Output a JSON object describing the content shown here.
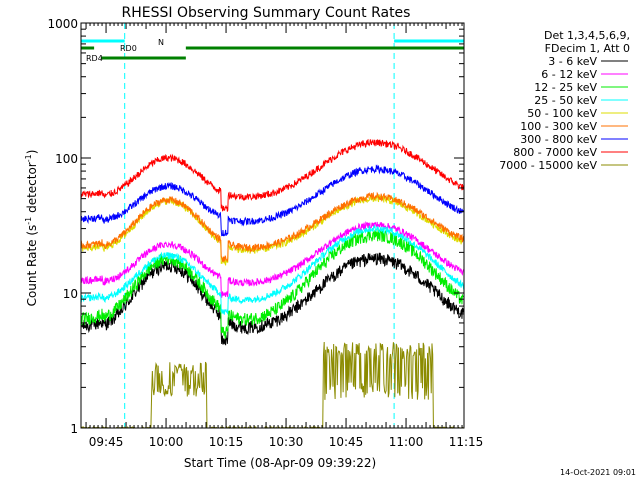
{
  "chart_data": {
    "type": "line",
    "title": "RHESSI Observing Summary Count Rates",
    "xlabel": "Start Time (08-Apr-09 09:39:22)",
    "ylabel_main": "Count Rate (s",
    "ylabel_sup1": "-1",
    "ylabel_mid": " detector",
    "ylabel_sup2": "-1",
    "ylabel_end": ")",
    "yscale": "log",
    "ylim": [
      1,
      1000
    ],
    "xlim_minutes": [
      -15.0,
      116.5
    ],
    "x_ticks": [
      {
        "min": -6.4,
        "label": "09:45"
      },
      {
        "min": 14.2,
        "label": "10:00"
      },
      {
        "min": 34.8,
        "label": "10:15"
      },
      {
        "min": 55.4,
        "label": "10:30"
      },
      {
        "min": 76.0,
        "label": "10:45"
      },
      {
        "min": 96.6,
        "label": "11:00"
      },
      {
        "min": 117.2,
        "label": "11:15"
      }
    ],
    "y_ticks": [
      {
        "value": 1,
        "label": "1"
      },
      {
        "value": 10,
        "label": "10"
      },
      {
        "value": 100,
        "label": "100"
      },
      {
        "value": 1000,
        "label": "1000"
      }
    ],
    "legend": {
      "header_line1": "Det 1,3,4,5,6,9,",
      "header_line2": "FDecim 1, Att 0",
      "placement": "right"
    },
    "series": [
      {
        "name": "3 - 6 keV",
        "color": "#000000",
        "base": 5.3,
        "peak1": 16,
        "peak2": 18
      },
      {
        "name": "6 - 12 keV",
        "color": "#ff00ff",
        "base": 11.5,
        "peak1": 23,
        "peak2": 32
      },
      {
        "name": "12 - 25 keV",
        "color": "#00ee00",
        "base": 6.0,
        "peak1": 18,
        "peak2": 27
      },
      {
        "name": "25 - 50 keV",
        "color": "#00ffff",
        "base": 8.5,
        "peak1": 19,
        "peak2": 30
      },
      {
        "name": "50 - 100 keV",
        "color": "#dddd00",
        "base": 20,
        "peak1": 48,
        "peak2": 50
      },
      {
        "name": "100 - 300 keV",
        "color": "#ff7000",
        "base": 21,
        "peak1": 49,
        "peak2": 52
      },
      {
        "name": "300 - 800 keV",
        "color": "#0000ff",
        "base": 33,
        "peak1": 62,
        "peak2": 83
      },
      {
        "name": "800 - 7000 keV",
        "color": "#ff0000",
        "base": 50,
        "peak1": 100,
        "peak2": 130
      },
      {
        "name": "7000 - 15000 keV",
        "color": "#8b8b00",
        "base": 1.0,
        "peak1": 2.8,
        "peak2": 3.8
      }
    ],
    "flags": [
      {
        "label": "N",
        "color": "#00ffff",
        "segments": [
          [
            -15.0,
            0.0
          ],
          [
            92.5,
            116.5
          ]
        ]
      },
      {
        "label": "RD0",
        "color": "#008000",
        "segments": [
          [
            -15.0,
            -10.5
          ],
          [
            21.0,
            116.5
          ]
        ]
      },
      {
        "label": "RD4",
        "color": "#008000",
        "segments": [
          [
            -8.0,
            21.0
          ]
        ]
      }
    ],
    "night_lines_min": [
      -15.0,
      0.0,
      92.5,
      116.5
    ],
    "footer_stamp": "14-Oct-2021 09:01"
  }
}
